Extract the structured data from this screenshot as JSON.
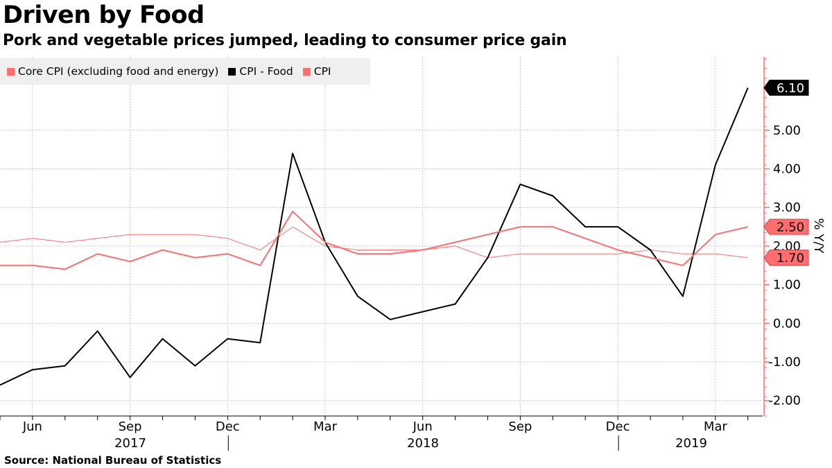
{
  "title": "Driven by Food",
  "subtitle": "Pork and vegetable prices jumped, leading to consumer price gain",
  "source": "Source: National Bureau of Statistics",
  "legend": [
    {
      "label": "Core CPI (excluding food and energy)",
      "color": "#ff6e6e"
    },
    {
      "label": "CPI - Food",
      "color": "#000000"
    },
    {
      "label": "CPI",
      "color": "#ff6e6e"
    }
  ],
  "chart_data": {
    "type": "line",
    "x": [
      "2017-05",
      "2017-06",
      "2017-07",
      "2017-08",
      "2017-09",
      "2017-10",
      "2017-11",
      "2017-12",
      "2018-01",
      "2018-02",
      "2018-03",
      "2018-04",
      "2018-05",
      "2018-06",
      "2018-07",
      "2018-08",
      "2018-09",
      "2018-10",
      "2018-11",
      "2018-12",
      "2019-01",
      "2019-02",
      "2019-03",
      "2019-04"
    ],
    "series": [
      {
        "name": "Core CPI (excluding food and energy)",
        "color": "#ff6e6e",
        "width": 1,
        "values": [
          2.1,
          2.2,
          2.1,
          2.2,
          2.3,
          2.3,
          2.3,
          2.2,
          1.9,
          2.5,
          2.0,
          1.9,
          1.9,
          1.9,
          2.0,
          1.7,
          1.8,
          1.8,
          1.8,
          1.8,
          1.9,
          1.8,
          1.8,
          1.7
        ]
      },
      {
        "name": "CPI - Food",
        "color": "#000000",
        "width": 2,
        "values": [
          -1.6,
          -1.2,
          -1.1,
          -0.2,
          -1.4,
          -0.4,
          -1.1,
          -0.4,
          -0.5,
          4.4,
          2.1,
          0.7,
          0.1,
          0.3,
          0.5,
          1.7,
          3.6,
          3.3,
          2.5,
          2.5,
          1.9,
          0.7,
          4.1,
          6.1
        ]
      },
      {
        "name": "CPI",
        "color": "#ff6e6e",
        "width": 2,
        "values": [
          1.5,
          1.5,
          1.4,
          1.8,
          1.6,
          1.9,
          1.7,
          1.8,
          1.5,
          2.9,
          2.1,
          1.8,
          1.8,
          1.9,
          2.1,
          2.3,
          2.5,
          2.5,
          2.2,
          1.9,
          1.7,
          1.5,
          2.3,
          2.5
        ]
      }
    ],
    "ylim": [
      -2.4,
      6.9
    ],
    "yticks": [
      "-2.00",
      "-1.00",
      "0.00",
      "1.00",
      "2.00",
      "3.00",
      "4.00",
      "5.00"
    ],
    "ylabel": "% Y/Y",
    "xtick_labels": [
      {
        "label": "Jun",
        "x": "2017-06"
      },
      {
        "label": "Sep",
        "x": "2017-09"
      },
      {
        "label": "Dec",
        "x": "2017-12"
      },
      {
        "label": "Mar",
        "x": "2018-03"
      },
      {
        "label": "Jun",
        "x": "2018-06"
      },
      {
        "label": "Sep",
        "x": "2018-09"
      },
      {
        "label": "Dec",
        "x": "2018-12"
      },
      {
        "label": "Mar",
        "x": "2019-03"
      }
    ],
    "year_labels": [
      "2017",
      "2018",
      "2019"
    ],
    "end_labels": [
      {
        "value": "6.10",
        "color": "#000000",
        "text_color": "#ffffff"
      },
      {
        "value": "2.50",
        "color": "#ff6e6e",
        "text_color": "#000000"
      },
      {
        "value": "1.70",
        "color": "#ff6e6e",
        "text_color": "#000000"
      }
    ],
    "grid": true,
    "legend_position": "top-left"
  }
}
